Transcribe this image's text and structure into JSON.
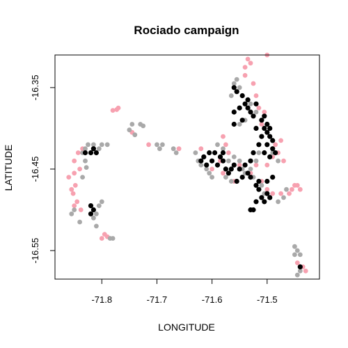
{
  "chart_data": {
    "type": "scatter",
    "title": "Rociado campaign",
    "xlabel": "LONGITUDE",
    "ylabel": "LATITUDE",
    "xlim": [
      -71.885,
      -71.405
    ],
    "ylim": [
      -16.585,
      -16.31
    ],
    "xticks": [
      -71.8,
      -71.7,
      -71.6,
      -71.5
    ],
    "xtick_labels": [
      "-71.8",
      "-71.7",
      "-71.6",
      "-71.5"
    ],
    "yticks": [
      -16.35,
      -16.45,
      -16.55
    ],
    "ytick_labels": [
      "-16.35",
      "-16.45",
      "-16.55"
    ],
    "grid": false,
    "legend": "none",
    "colors": {
      "pink": "#f7a1b0",
      "gray": "#a9a9a9",
      "black": "#000000"
    },
    "series": [
      {
        "color": "pink",
        "points": [
          [
            -71.85,
            -16.44
          ],
          [
            -71.85,
            -16.455
          ],
          [
            -71.848,
            -16.47
          ],
          [
            -71.852,
            -16.48
          ],
          [
            -71.845,
            -16.49
          ],
          [
            -71.86,
            -16.46
          ],
          [
            -71.84,
            -16.45
          ],
          [
            -71.843,
            -16.43
          ],
          [
            -71.835,
            -16.425
          ],
          [
            -71.855,
            -16.475
          ],
          [
            -71.85,
            -16.495
          ],
          [
            -71.838,
            -16.5
          ],
          [
            -71.77,
            -16.375
          ],
          [
            -71.773,
            -16.377
          ],
          [
            -71.78,
            -16.378
          ],
          [
            -71.745,
            -16.405
          ],
          [
            -71.715,
            -16.42
          ],
          [
            -71.66,
            -16.425
          ],
          [
            -71.8,
            -16.535
          ],
          [
            -71.795,
            -16.53
          ],
          [
            -71.79,
            -16.533
          ],
          [
            -71.54,
            -16.335
          ],
          [
            -71.53,
            -16.32
          ],
          [
            -71.525,
            -16.345
          ],
          [
            -71.52,
            -16.36
          ],
          [
            -71.535,
            -16.315
          ],
          [
            -71.54,
            -16.325
          ],
          [
            -71.515,
            -16.375
          ],
          [
            -71.505,
            -16.38
          ],
          [
            -71.51,
            -16.395
          ],
          [
            -71.495,
            -16.4
          ],
          [
            -71.485,
            -16.42
          ],
          [
            -71.48,
            -16.43
          ],
          [
            -71.475,
            -16.415
          ],
          [
            -71.49,
            -16.435
          ],
          [
            -71.5,
            -16.445
          ],
          [
            -71.47,
            -16.44
          ],
          [
            -71.5,
            -16.31
          ],
          [
            -71.58,
            -16.41
          ],
          [
            -71.575,
            -16.42
          ],
          [
            -71.57,
            -16.43
          ],
          [
            -71.585,
            -16.44
          ],
          [
            -71.62,
            -16.425
          ],
          [
            -71.6,
            -16.45
          ],
          [
            -71.58,
            -16.455
          ],
          [
            -71.52,
            -16.445
          ],
          [
            -71.53,
            -16.455
          ],
          [
            -71.51,
            -16.465
          ],
          [
            -71.5,
            -16.475
          ],
          [
            -71.49,
            -16.48
          ],
          [
            -71.475,
            -16.48
          ],
          [
            -71.46,
            -16.48
          ],
          [
            -71.455,
            -16.475
          ],
          [
            -71.45,
            -16.47
          ],
          [
            -71.445,
            -16.47
          ],
          [
            -71.44,
            -16.475
          ],
          [
            -71.55,
            -16.445
          ],
          [
            -71.56,
            -16.465
          ],
          [
            -71.445,
            -16.565
          ],
          [
            -71.435,
            -16.57
          ],
          [
            -71.43,
            -16.575
          ]
        ]
      },
      {
        "color": "gray",
        "points": [
          [
            -71.83,
            -16.425
          ],
          [
            -71.835,
            -16.43
          ],
          [
            -71.825,
            -16.42
          ],
          [
            -71.815,
            -16.42
          ],
          [
            -71.805,
            -16.425
          ],
          [
            -71.8,
            -16.42
          ],
          [
            -71.79,
            -16.42
          ],
          [
            -71.83,
            -16.44
          ],
          [
            -71.828,
            -16.448
          ],
          [
            -71.835,
            -16.46
          ],
          [
            -71.8,
            -16.49
          ],
          [
            -71.805,
            -16.495
          ],
          [
            -71.81,
            -16.505
          ],
          [
            -71.815,
            -16.51
          ],
          [
            -71.81,
            -16.52
          ],
          [
            -71.84,
            -16.515
          ],
          [
            -71.855,
            -16.505
          ],
          [
            -71.85,
            -16.5
          ],
          [
            -71.78,
            -16.535
          ],
          [
            -71.785,
            -16.535
          ],
          [
            -71.73,
            -16.395
          ],
          [
            -71.725,
            -16.397
          ],
          [
            -71.745,
            -16.395
          ],
          [
            -71.75,
            -16.402
          ],
          [
            -71.74,
            -16.408
          ],
          [
            -71.7,
            -16.42
          ],
          [
            -71.69,
            -16.42
          ],
          [
            -71.695,
            -16.425
          ],
          [
            -71.67,
            -16.425
          ],
          [
            -71.665,
            -16.43
          ],
          [
            -71.63,
            -16.43
          ],
          [
            -71.625,
            -16.44
          ],
          [
            -71.62,
            -16.445
          ],
          [
            -71.61,
            -16.45
          ],
          [
            -71.605,
            -16.455
          ],
          [
            -71.6,
            -16.46
          ],
          [
            -71.59,
            -16.42
          ],
          [
            -71.58,
            -16.425
          ],
          [
            -71.56,
            -16.435
          ],
          [
            -71.55,
            -16.44
          ],
          [
            -71.545,
            -16.45
          ],
          [
            -71.54,
            -16.455
          ],
          [
            -71.53,
            -16.45
          ],
          [
            -71.525,
            -16.46
          ],
          [
            -71.51,
            -16.47
          ],
          [
            -71.505,
            -16.48
          ],
          [
            -71.48,
            -16.49
          ],
          [
            -71.47,
            -16.485
          ],
          [
            -71.465,
            -16.475
          ],
          [
            -71.49,
            -16.46
          ],
          [
            -71.55,
            -16.35
          ],
          [
            -71.555,
            -16.34
          ],
          [
            -71.56,
            -16.345
          ],
          [
            -71.565,
            -16.36
          ],
          [
            -71.53,
            -16.37
          ],
          [
            -71.52,
            -16.38
          ],
          [
            -71.54,
            -16.39
          ],
          [
            -71.55,
            -16.395
          ],
          [
            -71.5,
            -16.42
          ],
          [
            -71.49,
            -16.43
          ],
          [
            -71.48,
            -16.44
          ],
          [
            -71.515,
            -16.43
          ],
          [
            -71.52,
            -16.44
          ],
          [
            -71.45,
            -16.545
          ],
          [
            -71.445,
            -16.55
          ],
          [
            -71.44,
            -16.555
          ],
          [
            -71.45,
            -16.555
          ],
          [
            -71.44,
            -16.575
          ],
          [
            -71.445,
            -16.58
          ],
          [
            -71.57,
            -16.44
          ],
          [
            -71.575,
            -16.46
          ],
          [
            -71.565,
            -16.465
          ]
        ]
      },
      {
        "color": "black",
        "points": [
          [
            -71.83,
            -16.43
          ],
          [
            -71.82,
            -16.43
          ],
          [
            -71.815,
            -16.425
          ],
          [
            -71.81,
            -16.43
          ],
          [
            -71.815,
            -16.5
          ],
          [
            -71.82,
            -16.505
          ],
          [
            -71.82,
            -16.495
          ],
          [
            -71.56,
            -16.35
          ],
          [
            -71.555,
            -16.355
          ],
          [
            -71.545,
            -16.36
          ],
          [
            -71.54,
            -16.37
          ],
          [
            -71.535,
            -16.375
          ],
          [
            -71.53,
            -16.38
          ],
          [
            -71.525,
            -16.385
          ],
          [
            -71.545,
            -16.39
          ],
          [
            -71.56,
            -16.395
          ],
          [
            -71.55,
            -16.375
          ],
          [
            -71.535,
            -16.365
          ],
          [
            -71.52,
            -16.37
          ],
          [
            -71.51,
            -16.39
          ],
          [
            -71.505,
            -16.4
          ],
          [
            -71.5,
            -16.405
          ],
          [
            -71.495,
            -16.41
          ],
          [
            -71.49,
            -16.415
          ],
          [
            -71.51,
            -16.41
          ],
          [
            -71.515,
            -16.42
          ],
          [
            -71.5,
            -16.42
          ],
          [
            -71.49,
            -16.425
          ],
          [
            -71.485,
            -16.43
          ],
          [
            -71.495,
            -16.435
          ],
          [
            -71.505,
            -16.43
          ],
          [
            -71.52,
            -16.4
          ],
          [
            -71.525,
            -16.43
          ],
          [
            -71.53,
            -16.44
          ],
          [
            -71.54,
            -16.445
          ],
          [
            -71.535,
            -16.455
          ],
          [
            -71.545,
            -16.46
          ],
          [
            -71.55,
            -16.45
          ],
          [
            -71.56,
            -16.445
          ],
          [
            -71.565,
            -16.45
          ],
          [
            -71.57,
            -16.455
          ],
          [
            -71.575,
            -16.45
          ],
          [
            -71.58,
            -16.44
          ],
          [
            -71.59,
            -16.445
          ],
          [
            -71.6,
            -16.44
          ],
          [
            -71.61,
            -16.445
          ],
          [
            -71.615,
            -16.435
          ],
          [
            -71.62,
            -16.44
          ],
          [
            -71.605,
            -16.43
          ],
          [
            -71.595,
            -16.43
          ],
          [
            -71.585,
            -16.435
          ],
          [
            -71.58,
            -16.43
          ],
          [
            -71.555,
            -16.465
          ],
          [
            -71.52,
            -16.47
          ],
          [
            -71.515,
            -16.475
          ],
          [
            -71.5,
            -16.48
          ],
          [
            -71.495,
            -16.485
          ],
          [
            -71.505,
            -16.49
          ],
          [
            -71.51,
            -16.485
          ],
          [
            -71.52,
            -16.49
          ],
          [
            -71.525,
            -16.5
          ],
          [
            -71.53,
            -16.5
          ],
          [
            -71.515,
            -16.465
          ],
          [
            -71.5,
            -16.465
          ],
          [
            -71.49,
            -16.46
          ],
          [
            -71.53,
            -16.46
          ],
          [
            -71.505,
            -16.385
          ],
          [
            -71.5,
            -16.395
          ],
          [
            -71.495,
            -16.4
          ],
          [
            -71.56,
            -16.38
          ],
          [
            -71.44,
            -16.57
          ]
        ]
      }
    ]
  }
}
